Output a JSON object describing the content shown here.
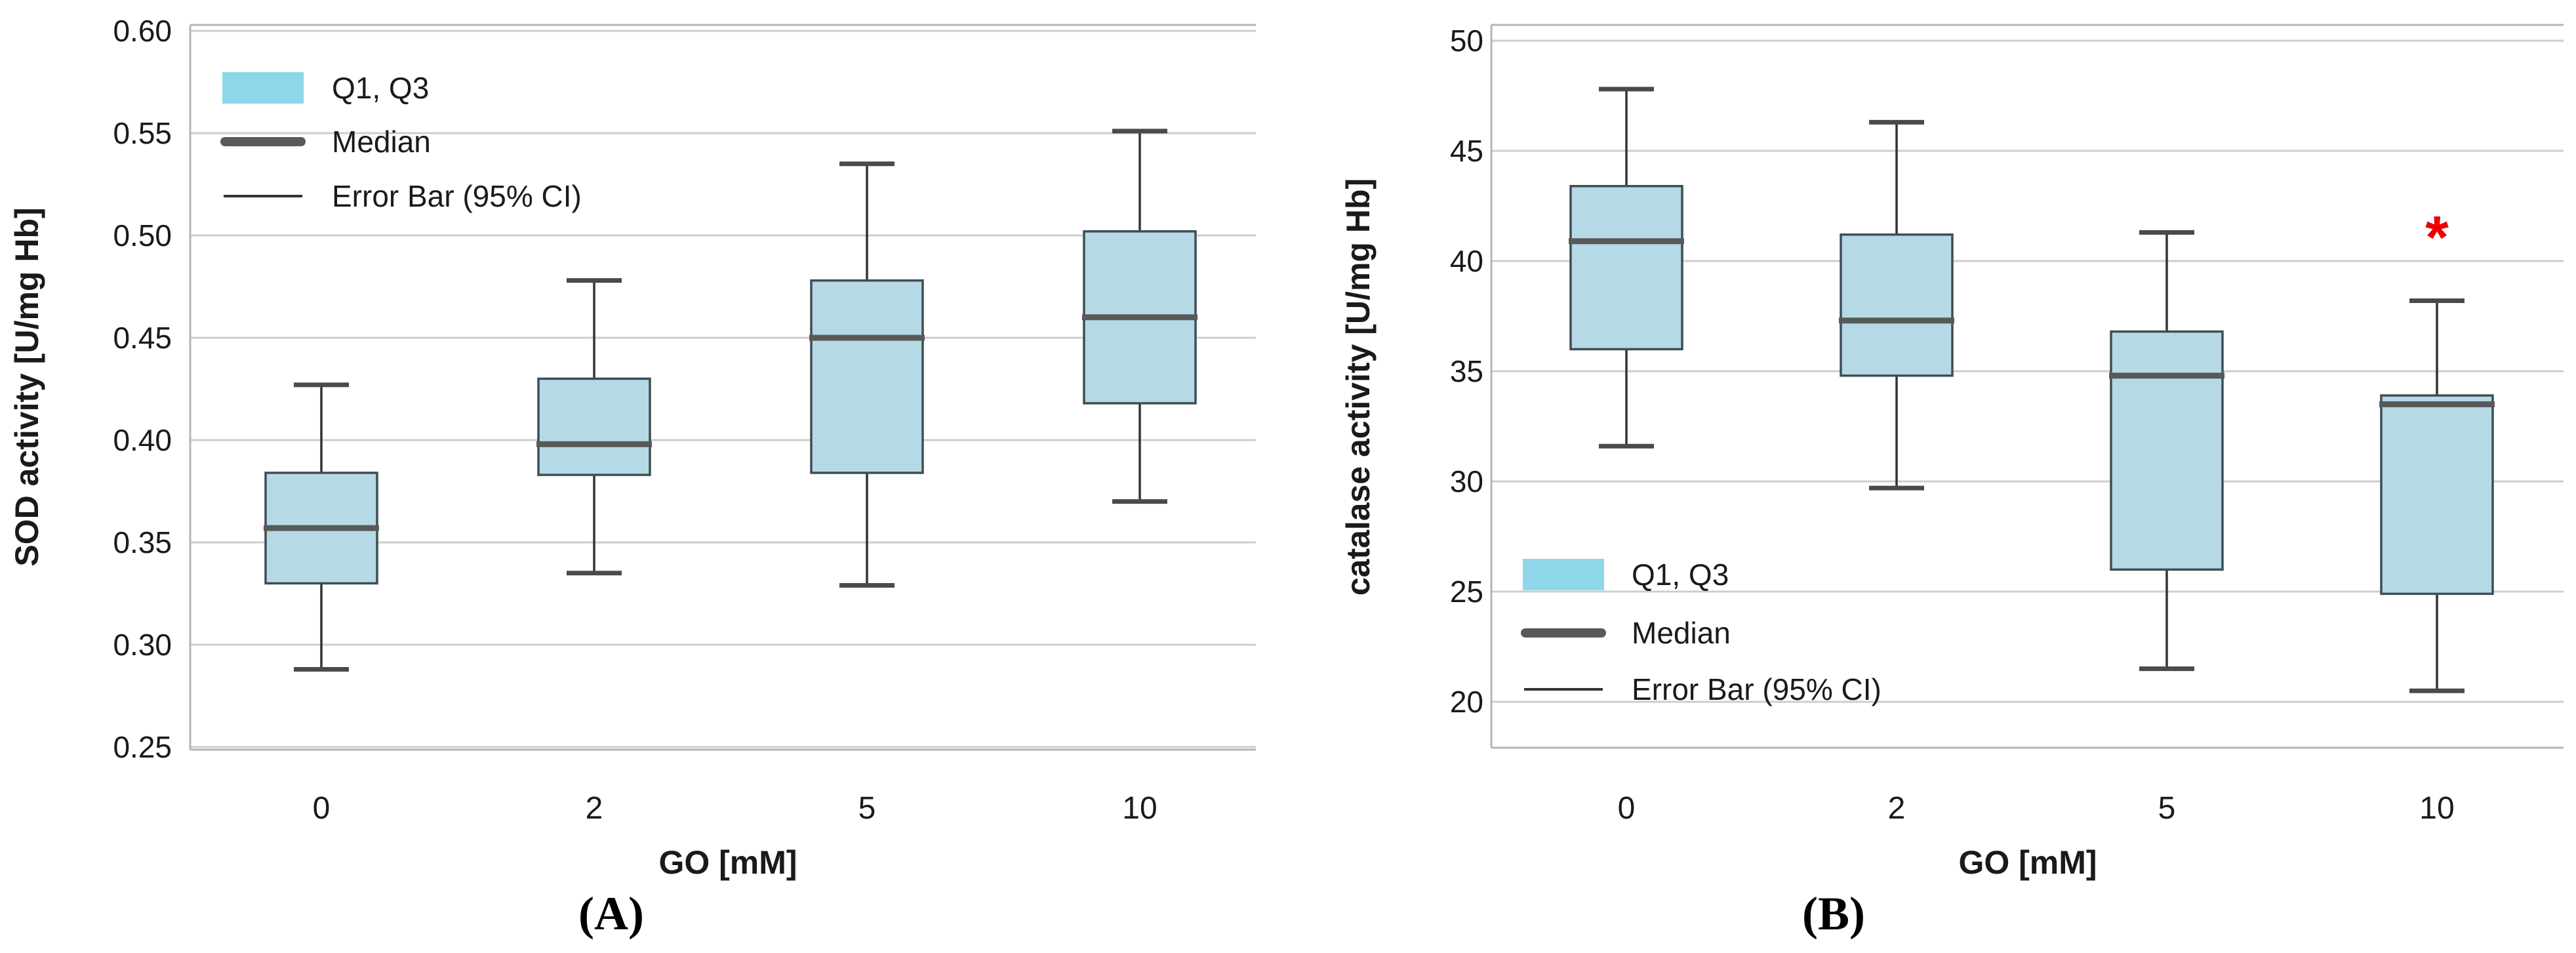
{
  "figure": {
    "captions": {
      "a": "(A)",
      "b": "(B)"
    }
  },
  "colors": {
    "box_fill": "#b5dae5",
    "legend_swatch_fill": "#8ed7ea",
    "box_edge": "#3e4e56",
    "median": "#595959",
    "whisker": "#333333",
    "whisker_cap": "#4a4a4a",
    "gridline": "#cdcdcd",
    "plot_border": "#b5b5b5",
    "text": "#1a1a1a",
    "annotation_red": "#ee0000"
  },
  "chart_data": [
    {
      "type": "box",
      "panel": "A",
      "xlabel": "GO [mM]",
      "ylabel": "SOD activity [U/mg Hb]",
      "categories": [
        "0",
        "2",
        "5",
        "10"
      ],
      "yticks": [
        0.25,
        0.3,
        0.35,
        0.4,
        0.45,
        0.5,
        0.55,
        0.6
      ],
      "ytick_labels": [
        "0.25",
        "0.30",
        "0.35",
        "0.40",
        "0.45",
        "0.50",
        "0.55",
        "0.60"
      ],
      "ylim": [
        0.247,
        0.603
      ],
      "grid": true,
      "legend": {
        "position": "top-left",
        "items": [
          "Q1, Q3",
          "Median",
          "Error Bar (95% CI)"
        ]
      },
      "series": [
        {
          "category": "0",
          "whisker_low": 0.288,
          "q1": 0.33,
          "median": 0.357,
          "q3": 0.384,
          "whisker_high": 0.427
        },
        {
          "category": "2",
          "whisker_low": 0.335,
          "q1": 0.383,
          "median": 0.398,
          "q3": 0.43,
          "whisker_high": 0.478
        },
        {
          "category": "5",
          "whisker_low": 0.329,
          "q1": 0.384,
          "median": 0.45,
          "q3": 0.478,
          "whisker_high": 0.535
        },
        {
          "category": "10",
          "whisker_low": 0.37,
          "q1": 0.418,
          "median": 0.46,
          "q3": 0.502,
          "whisker_high": 0.551
        }
      ],
      "annotations": []
    },
    {
      "type": "box",
      "panel": "B",
      "xlabel": "GO [mM]",
      "ylabel": "catalase activity [U/mg Hb]",
      "categories": [
        "0",
        "2",
        "5",
        "10"
      ],
      "yticks": [
        20,
        25,
        30,
        35,
        40,
        45,
        50
      ],
      "ytick_labels": [
        "20",
        "25",
        "30",
        "35",
        "40",
        "45",
        "50"
      ],
      "ylim": [
        18.6,
        50.7
      ],
      "grid": true,
      "legend": {
        "position": "bottom-left",
        "items": [
          "Q1, Q3",
          "Median",
          "Error Bar (95% CI)"
        ]
      },
      "series": [
        {
          "category": "0",
          "whisker_low": 31.6,
          "q1": 36.0,
          "median": 40.9,
          "q3": 43.4,
          "whisker_high": 47.8
        },
        {
          "category": "2",
          "whisker_low": 29.7,
          "q1": 34.8,
          "median": 37.3,
          "q3": 41.2,
          "whisker_high": 46.3
        },
        {
          "category": "5",
          "whisker_low": 21.5,
          "q1": 26.0,
          "median": 34.8,
          "q3": 36.8,
          "whisker_high": 41.3
        },
        {
          "category": "10",
          "whisker_low": 20.5,
          "q1": 24.9,
          "median": 33.5,
          "q3": 33.9,
          "whisker_high": 38.2
        }
      ],
      "annotations": [
        {
          "text": "*",
          "category": "10",
          "y": 41.5,
          "color": "#ee0000",
          "meaning": "statistically-significant-marker"
        }
      ]
    }
  ]
}
